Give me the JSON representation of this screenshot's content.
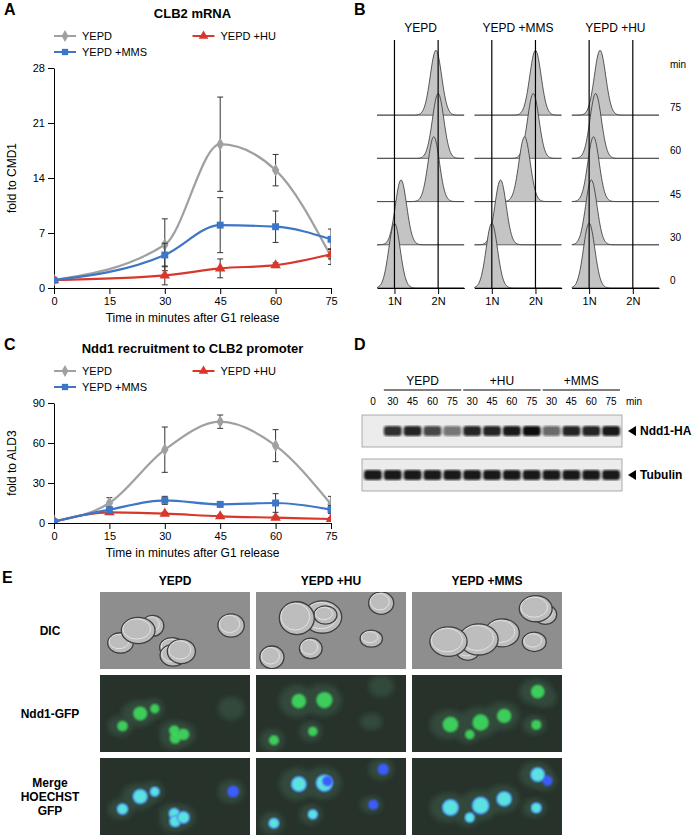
{
  "chart_data": [
    {
      "panel": "A",
      "type": "line",
      "title": "CLB2 mRNA",
      "x_label": "Time in minutes after G1 release",
      "y_label": "fold to CMD1",
      "x": [
        0,
        30,
        45,
        60,
        75
      ],
      "xlim": [
        0,
        75
      ],
      "xticks": [
        0,
        15,
        30,
        45,
        60,
        75
      ],
      "ylim": [
        0,
        28
      ],
      "yticks": [
        0,
        7,
        14,
        21,
        28
      ],
      "legend": "top",
      "series": [
        {
          "name": "YEPD",
          "color": "#a0a0a0",
          "marker": "diamond",
          "values": [
            1,
            5.5,
            18.3,
            15,
            4
          ],
          "errors": [
            0,
            3.3,
            6,
            2,
            1
          ]
        },
        {
          "name": "YEPD +HU",
          "color": "#d9372b",
          "marker": "triangle",
          "values": [
            1,
            1.6,
            2.5,
            2.9,
            4.3
          ],
          "errors": [
            0,
            1.2,
            1.2,
            0.3,
            0.6
          ]
        },
        {
          "name": "YEPD +MMS",
          "color": "#3d76c6",
          "marker": "square",
          "values": [
            1,
            4.2,
            8,
            7.8,
            6.2
          ],
          "errors": [
            0,
            1.5,
            3.5,
            2,
            1.3
          ]
        }
      ]
    },
    {
      "panel": "B",
      "type": "flow_cytometry",
      "unit": "min",
      "times": [
        0,
        30,
        45,
        60,
        75
      ],
      "xlim": [
        0.6,
        2.6
      ],
      "xticks": [
        {
          "value": 1,
          "label": "1N"
        },
        {
          "value": 2,
          "label": "2N"
        }
      ],
      "panels": [
        {
          "title": "YEPD",
          "peaks": [
            1.0,
            1.15,
            1.9,
            2.0,
            1.95
          ]
        },
        {
          "title": "YEPD +MMS",
          "peaks": [
            1.0,
            1.2,
            1.75,
            1.95,
            2.0
          ]
        },
        {
          "title": "YEPD +HU",
          "peaks": [
            1.0,
            1.05,
            1.1,
            1.15,
            1.25
          ]
        }
      ]
    },
    {
      "panel": "C",
      "type": "line",
      "title": "Ndd1 recruitment to CLB2 promoter",
      "x_label": "Time in minutes after G1 release",
      "y_label": "fold to ALD3",
      "x": [
        0,
        15,
        30,
        45,
        60,
        75
      ],
      "xlim": [
        0,
        75
      ],
      "xticks": [
        0,
        15,
        30,
        45,
        60,
        75
      ],
      "ylim": [
        0,
        90
      ],
      "yticks": [
        0,
        30,
        60,
        90
      ],
      "legend": "top",
      "series": [
        {
          "name": "YEPD",
          "color": "#a0a0a0",
          "marker": "diamond",
          "values": [
            1.5,
            15,
            55,
            76,
            58,
            14
          ],
          "errors": [
            0,
            4,
            17,
            5,
            12,
            6
          ]
        },
        {
          "name": "YEPD +HU",
          "color": "#d9372b",
          "marker": "triangle",
          "values": [
            1,
            8,
            7,
            5,
            4,
            3
          ],
          "errors": [
            0,
            1,
            1,
            1,
            1,
            1
          ]
        },
        {
          "name": "YEPD +MMS",
          "color": "#3d76c6",
          "marker": "square",
          "values": [
            1,
            10,
            17,
            14,
            15,
            10
          ],
          "errors": [
            0,
            2,
            3,
            2,
            7,
            3
          ]
        }
      ]
    }
  ],
  "blot": {
    "panel": "D",
    "unit": "min",
    "lane_groups": [
      {
        "label": null,
        "times": [
          0
        ]
      },
      {
        "label": "YEPD",
        "times": [
          30,
          45,
          60,
          75
        ]
      },
      {
        "label": "+HU",
        "times": [
          30,
          45,
          60,
          75
        ]
      },
      {
        "label": "+MMS",
        "times": [
          30,
          45,
          60,
          75
        ]
      }
    ],
    "rows": [
      {
        "label": "Ndd1-HA",
        "intensity": [
          [
            0
          ],
          [
            0.85,
            0.9,
            0.75,
            0.55
          ],
          [
            0.9,
            0.9,
            0.95,
            1.0
          ],
          [
            0.6,
            0.9,
            0.9,
            0.95
          ]
        ]
      },
      {
        "label": "Tubulin",
        "intensity": [
          [
            0.95
          ],
          [
            0.95,
            0.95,
            0.95,
            0.95
          ],
          [
            0.95,
            0.95,
            0.95,
            0.95
          ],
          [
            0.95,
            0.95,
            0.95,
            0.95
          ]
        ]
      }
    ]
  },
  "micrographs": {
    "panel": "E",
    "columns": [
      "YEPD",
      "YEPD +HU",
      "YEPD +MMS"
    ],
    "rows": [
      [
        "DIC"
      ],
      [
        "Ndd1-GFP"
      ],
      [
        "Merge",
        "HOECHST",
        "GFP"
      ]
    ]
  }
}
